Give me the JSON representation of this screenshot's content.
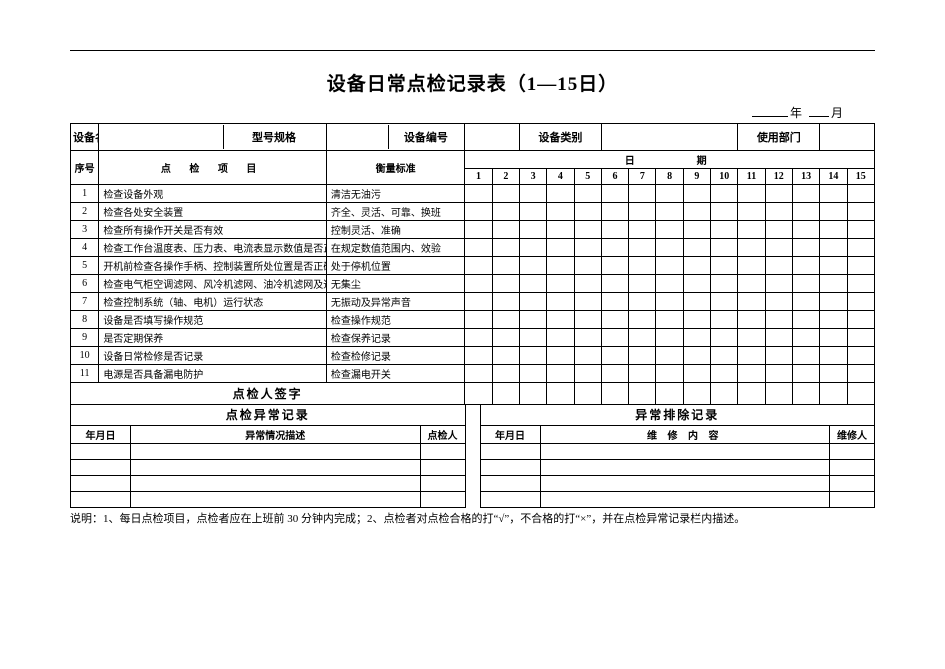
{
  "title": "设备日常点检记录表（1—15日）",
  "yearmonth_year": "年",
  "yearmonth_month": "月",
  "header": {
    "equip_name": "设备名称",
    "model": "型号规格",
    "equip_no": "设备编号",
    "equip_type": "设备类别",
    "dept": "使用部门"
  },
  "cols": {
    "seq": "序号",
    "item": "点 检 项 目",
    "std": "衡量标准",
    "date_hdr": "日　　　期"
  },
  "days": [
    "1",
    "2",
    "3",
    "4",
    "5",
    "6",
    "7",
    "8",
    "9",
    "10",
    "11",
    "12",
    "13",
    "14",
    "15"
  ],
  "rows": [
    {
      "n": "1",
      "item": "检查设备外观",
      "std": "清洁无油污"
    },
    {
      "n": "2",
      "item": "检查各处安全装置",
      "std": "齐全、灵活、可靠、换班"
    },
    {
      "n": "3",
      "item": "检查所有操作开关是否有效",
      "std": "控制灵活、准确"
    },
    {
      "n": "4",
      "item": "检查工作台温度表、压力表、电流表显示数值是否正确",
      "std": "在规定数值范围内、效验"
    },
    {
      "n": "5",
      "item": "开机前检查各操作手柄、控制装置所处位置是否正确",
      "std": "处于停机位置"
    },
    {
      "n": "6",
      "item": "检查电气柜空调滤网、风冷机滤网、油冷机滤网及通风管",
      "std": "无集尘"
    },
    {
      "n": "7",
      "item": "检查控制系统（轴、电机）运行状态",
      "std": "无振动及异常声音"
    },
    {
      "n": "8",
      "item": "设备是否填写操作规范",
      "std": "检查操作规范"
    },
    {
      "n": "9",
      "item": "是否定期保养",
      "std": "检查保养记录"
    },
    {
      "n": "10",
      "item": "设备日常检修是否记录",
      "std": "检查检修记录"
    },
    {
      "n": "11",
      "item": "电源是否具备漏电防护",
      "std": "检查漏电开关"
    }
  ],
  "signer_label": "点检人签字",
  "abnormal": {
    "title": "点检异常记录",
    "date": "年月日",
    "desc": "异常情况描述",
    "person": "点检人"
  },
  "repair": {
    "title": "异常排除记录",
    "date": "年月日",
    "desc": "维 修 内 容",
    "person": "维修人"
  },
  "note": "说明：1、每日点检项目，点检者应在上班前 30 分钟内完成；2、点检者对点检合格的打“√”，不合格的打“×”，并在点检异常记录栏内描述。"
}
